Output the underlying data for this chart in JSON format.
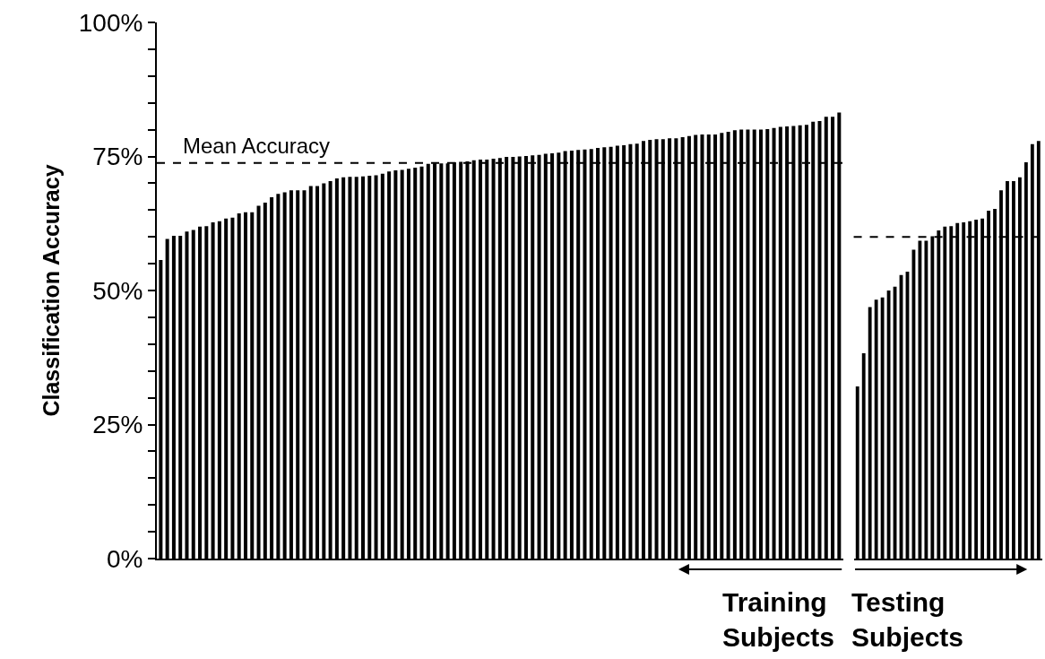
{
  "chart_data": [
    {
      "type": "bar",
      "xlabel": "Training Subjects",
      "ylabel": "Classification Accuracy",
      "categories": [
        null,
        null,
        null,
        null,
        null,
        null,
        null,
        null,
        null,
        null,
        null,
        null,
        null,
        null,
        null,
        null,
        null,
        null,
        null,
        null,
        null,
        null,
        null,
        null,
        null,
        null,
        null,
        null,
        null,
        null,
        null,
        null,
        null,
        null,
        null,
        null,
        null,
        null,
        null,
        null,
        null,
        null,
        null,
        null,
        null,
        null,
        null,
        null,
        null,
        null,
        null,
        null,
        null,
        null,
        null,
        null,
        null,
        null,
        null,
        null,
        null,
        null,
        null,
        null,
        null,
        null,
        null,
        null,
        null,
        null,
        null,
        null,
        null,
        null,
        null,
        null,
        null,
        null,
        null,
        null,
        null,
        null,
        null,
        null,
        null,
        null,
        null,
        null,
        null,
        null,
        null,
        null,
        null,
        null,
        null,
        null,
        null,
        null,
        null,
        null,
        null,
        null,
        null,
        null,
        null
      ],
      "values": [
        55.7,
        59.6,
        60.2,
        60.2,
        61.0,
        61.3,
        61.9,
        62.0,
        62.7,
        62.9,
        63.4,
        63.6,
        64.4,
        64.6,
        64.6,
        65.8,
        66.4,
        67.4,
        68.0,
        68.3,
        68.7,
        68.7,
        68.7,
        69.5,
        69.5,
        70.0,
        70.4,
        70.9,
        71.1,
        71.2,
        71.2,
        71.3,
        71.4,
        71.5,
        71.8,
        72.2,
        72.4,
        72.5,
        72.7,
        72.9,
        73.1,
        73.6,
        73.7,
        73.7,
        73.7,
        73.9,
        74.0,
        74.1,
        74.3,
        74.4,
        74.4,
        74.6,
        74.7,
        74.9,
        74.9,
        75.0,
        75.1,
        75.2,
        75.3,
        75.5,
        75.6,
        75.7,
        76.0,
        76.1,
        76.2,
        76.3,
        76.4,
        76.6,
        76.7,
        76.8,
        77.0,
        77.1,
        77.3,
        77.4,
        77.9,
        78.1,
        78.2,
        78.2,
        78.4,
        78.4,
        78.6,
        78.8,
        79.0,
        79.1,
        79.1,
        79.1,
        79.4,
        79.6,
        79.9,
        80.0,
        80.0,
        80.0,
        80.0,
        80.1,
        80.3,
        80.5,
        80.6,
        80.7,
        80.8,
        80.9,
        81.5,
        81.6,
        82.4,
        82.4,
        83.2
      ],
      "color": "#000000",
      "ylim": [
        0,
        100
      ],
      "yticks": [
        {
          "value": 0,
          "label": "0%"
        },
        {
          "value": 5,
          "label": null
        },
        {
          "value": 10,
          "label": null
        },
        {
          "value": 15,
          "label": null
        },
        {
          "value": 20,
          "label": null
        },
        {
          "value": 25,
          "label": "25%"
        },
        {
          "value": 30,
          "label": null
        },
        {
          "value": 35,
          "label": null
        },
        {
          "value": 40,
          "label": null
        },
        {
          "value": 45,
          "label": null
        },
        {
          "value": 50,
          "label": "50%"
        },
        {
          "value": 55,
          "label": null
        },
        {
          "value": 60,
          "label": null
        },
        {
          "value": 65,
          "label": null
        },
        {
          "value": 70,
          "label": null
        },
        {
          "value": 75,
          "label": "75%"
        },
        {
          "value": 80,
          "label": null
        },
        {
          "value": 85,
          "label": null
        },
        {
          "value": 90,
          "label": null
        },
        {
          "value": 95,
          "label": null
        },
        {
          "value": 100,
          "label": "100%"
        }
      ],
      "ref_lines": [
        {
          "axis": "y",
          "value": 73.8,
          "label": "Mean Accuracy",
          "line_style": "dashed",
          "color": "#000000"
        }
      ],
      "tick_labels": "y"
    },
    {
      "type": "bar",
      "xlabel": "Testing Subjects",
      "categories": [
        null,
        null,
        null,
        null,
        null,
        null,
        null,
        null,
        null,
        null,
        null,
        null,
        null,
        null,
        null,
        null,
        null,
        null,
        null,
        null,
        null,
        null,
        null,
        null,
        null,
        null,
        null,
        null,
        null,
        null
      ],
      "values": [
        32.1,
        38.3,
        46.9,
        48.3,
        48.7,
        50.0,
        50.7,
        52.9,
        53.5,
        57.6,
        59.3,
        59.3,
        60.1,
        61.2,
        61.9,
        62.0,
        62.6,
        62.7,
        62.9,
        63.2,
        63.4,
        64.9,
        65.2,
        68.7,
        70.4,
        70.4,
        71.1,
        73.9,
        77.3,
        77.9
      ],
      "color": "#000000",
      "ylim": [
        0,
        100
      ],
      "ref_lines": [
        {
          "axis": "y",
          "value": 60.0,
          "line_style": "dashed",
          "color": "#000000"
        }
      ],
      "tick_labels": false
    }
  ]
}
